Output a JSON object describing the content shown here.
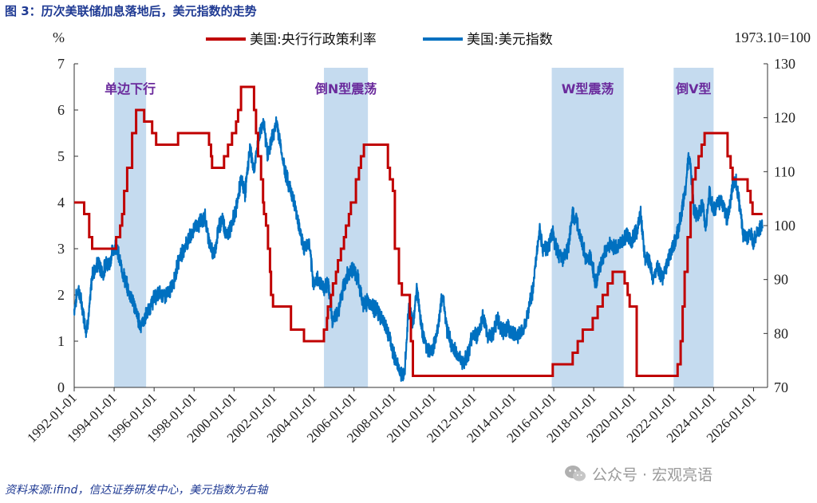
{
  "title": "图 3：历次美联储加息落地后，美元指数的走势",
  "source": "资料来源:ifind，信达证券研发中心，美元指数为右轴",
  "watermark": "公众号 · 宏观亮语",
  "colors": {
    "policy_rate": "#c00000",
    "dollar_index": "#0070c0",
    "shade": "#c5dbef",
    "label": "#6a2a9c"
  },
  "chart_data": {
    "type": "line",
    "left_axis": {
      "label": "%",
      "ylim": [
        0,
        7
      ],
      "ticks": [
        0,
        1,
        2,
        3,
        4,
        5,
        6,
        7
      ]
    },
    "right_axis": {
      "label": "1973.10=100",
      "ylim": [
        70,
        130
      ],
      "ticks": [
        70,
        80,
        90,
        100,
        110,
        120,
        130
      ]
    },
    "x_range": [
      1992.0,
      2026.7
    ],
    "x_ticks": [
      "1992-01-01",
      "1994-01-01",
      "1996-01-01",
      "1998-01-01",
      "2000-01-01",
      "2002-01-01",
      "2004-01-01",
      "2006-01-01",
      "2008-01-01",
      "2010-01-01",
      "2012-01-01",
      "2014-01-01",
      "2016-01-01",
      "2018-01-01",
      "2020-01-01",
      "2022-01-01",
      "2024-01-01",
      "2026-01-01"
    ],
    "shaded_periods": [
      {
        "label": "单边下行",
        "start": 1994.0,
        "end": 1995.6
      },
      {
        "label": "倒N型震荡",
        "start": 2004.5,
        "end": 2006.7
      },
      {
        "label": "W型震荡",
        "start": 2015.9,
        "end": 2019.5
      },
      {
        "label": "倒V型",
        "start": 2022.0,
        "end": 2024.0
      }
    ],
    "series": [
      {
        "name": "美国:央行行政策利率",
        "display_name": "美国:央行行政策利率",
        "axis": "left",
        "step": true,
        "points": [
          [
            1992.0,
            4.0
          ],
          [
            1992.5,
            3.75
          ],
          [
            1992.75,
            3.25
          ],
          [
            1992.9,
            3.0
          ],
          [
            1994.1,
            3.25
          ],
          [
            1994.3,
            3.5
          ],
          [
            1994.4,
            3.75
          ],
          [
            1994.5,
            4.25
          ],
          [
            1994.65,
            4.75
          ],
          [
            1994.9,
            5.5
          ],
          [
            1995.1,
            6.0
          ],
          [
            1995.5,
            5.75
          ],
          [
            1995.9,
            5.5
          ],
          [
            1996.1,
            5.25
          ],
          [
            1997.2,
            5.5
          ],
          [
            1998.75,
            5.25
          ],
          [
            1998.85,
            5.0
          ],
          [
            1998.9,
            4.75
          ],
          [
            1999.5,
            5.0
          ],
          [
            1999.7,
            5.25
          ],
          [
            1999.9,
            5.5
          ],
          [
            2000.1,
            5.75
          ],
          [
            2000.2,
            6.0
          ],
          [
            2000.35,
            6.5
          ],
          [
            2001.0,
            6.0
          ],
          [
            2001.1,
            5.5
          ],
          [
            2001.2,
            5.0
          ],
          [
            2001.35,
            4.5
          ],
          [
            2001.45,
            4.0
          ],
          [
            2001.5,
            3.75
          ],
          [
            2001.6,
            3.5
          ],
          [
            2001.7,
            3.0
          ],
          [
            2001.8,
            2.5
          ],
          [
            2001.85,
            2.0
          ],
          [
            2001.95,
            1.75
          ],
          [
            2002.85,
            1.25
          ],
          [
            2003.5,
            1.0
          ],
          [
            2004.5,
            1.25
          ],
          [
            2004.65,
            1.5
          ],
          [
            2004.7,
            1.75
          ],
          [
            2004.85,
            2.0
          ],
          [
            2004.95,
            2.25
          ],
          [
            2005.1,
            2.5
          ],
          [
            2005.2,
            2.75
          ],
          [
            2005.35,
            3.0
          ],
          [
            2005.5,
            3.25
          ],
          [
            2005.6,
            3.5
          ],
          [
            2005.75,
            3.75
          ],
          [
            2005.85,
            4.0
          ],
          [
            2006.1,
            4.5
          ],
          [
            2006.25,
            4.75
          ],
          [
            2006.35,
            5.0
          ],
          [
            2006.5,
            5.25
          ],
          [
            2007.7,
            4.75
          ],
          [
            2007.8,
            4.5
          ],
          [
            2007.95,
            4.25
          ],
          [
            2008.05,
            3.0
          ],
          [
            2008.25,
            2.25
          ],
          [
            2008.4,
            2.0
          ],
          [
            2008.8,
            1.5
          ],
          [
            2008.85,
            1.0
          ],
          [
            2008.95,
            0.25
          ],
          [
            2015.95,
            0.5
          ],
          [
            2016.95,
            0.75
          ],
          [
            2017.2,
            1.0
          ],
          [
            2017.45,
            1.25
          ],
          [
            2017.95,
            1.5
          ],
          [
            2018.2,
            1.75
          ],
          [
            2018.45,
            2.0
          ],
          [
            2018.7,
            2.25
          ],
          [
            2018.95,
            2.5
          ],
          [
            2019.55,
            2.25
          ],
          [
            2019.7,
            2.0
          ],
          [
            2019.8,
            1.75
          ],
          [
            2020.15,
            0.25
          ],
          [
            2022.2,
            0.5
          ],
          [
            2022.35,
            1.0
          ],
          [
            2022.45,
            1.75
          ],
          [
            2022.55,
            2.5
          ],
          [
            2022.7,
            3.25
          ],
          [
            2022.85,
            4.0
          ],
          [
            2022.95,
            4.5
          ],
          [
            2023.1,
            4.75
          ],
          [
            2023.25,
            5.0
          ],
          [
            2023.4,
            5.25
          ],
          [
            2023.55,
            5.5
          ],
          [
            2024.7,
            5.0
          ],
          [
            2024.85,
            4.75
          ],
          [
            2024.95,
            4.5
          ],
          [
            2025.7,
            4.25
          ],
          [
            2025.85,
            4.0
          ],
          [
            2025.95,
            3.75
          ],
          [
            2026.45,
            3.75
          ]
        ]
      },
      {
        "name": "美国:美元指数",
        "axis": "right",
        "step": false,
        "points": [
          [
            1992.0,
            84.5
          ],
          [
            1992.2,
            88.5
          ],
          [
            1992.45,
            84.0
          ],
          [
            1992.6,
            80.5
          ],
          [
            1992.75,
            84.0
          ],
          [
            1992.9,
            91.0
          ],
          [
            1993.2,
            93.0
          ],
          [
            1993.45,
            91.0
          ],
          [
            1993.6,
            93.5
          ],
          [
            1993.75,
            92.5
          ],
          [
            1993.9,
            95.0
          ],
          [
            1994.1,
            96.5
          ],
          [
            1994.3,
            93.0
          ],
          [
            1994.5,
            90.5
          ],
          [
            1994.7,
            88.0
          ],
          [
            1994.9,
            86.5
          ],
          [
            1995.1,
            84.0
          ],
          [
            1995.3,
            81.5
          ],
          [
            1995.5,
            82.5
          ],
          [
            1995.75,
            84.5
          ],
          [
            1996.0,
            86.5
          ],
          [
            1996.25,
            87.5
          ],
          [
            1996.5,
            87.0
          ],
          [
            1996.75,
            87.5
          ],
          [
            1997.0,
            90.0
          ],
          [
            1997.3,
            94.5
          ],
          [
            1997.6,
            96.5
          ],
          [
            1997.85,
            98.0
          ],
          [
            1998.05,
            100.0
          ],
          [
            1998.3,
            100.5
          ],
          [
            1998.55,
            101.5
          ],
          [
            1998.8,
            96.0
          ],
          [
            1999.0,
            94.5
          ],
          [
            1999.2,
            99.0
          ],
          [
            1999.4,
            101.5
          ],
          [
            1999.65,
            98.0
          ],
          [
            1999.9,
            100.5
          ],
          [
            2000.1,
            103.0
          ],
          [
            2000.35,
            108.5
          ],
          [
            2000.55,
            106.0
          ],
          [
            2000.8,
            114.5
          ],
          [
            2001.0,
            110.0
          ],
          [
            2001.2,
            115.5
          ],
          [
            2001.45,
            119.5
          ],
          [
            2001.7,
            113.0
          ],
          [
            2001.95,
            117.0
          ],
          [
            2002.15,
            119.0
          ],
          [
            2002.45,
            112.0
          ],
          [
            2002.7,
            108.0
          ],
          [
            2002.9,
            106.0
          ],
          [
            2003.2,
            101.0
          ],
          [
            2003.5,
            95.5
          ],
          [
            2003.75,
            97.0
          ],
          [
            2003.95,
            89.5
          ],
          [
            2004.25,
            90.0
          ],
          [
            2004.5,
            88.5
          ],
          [
            2004.7,
            89.5
          ],
          [
            2004.95,
            82.0
          ],
          [
            2005.2,
            84.0
          ],
          [
            2005.5,
            89.0
          ],
          [
            2005.75,
            91.5
          ],
          [
            2005.95,
            92.0
          ],
          [
            2006.2,
            90.0
          ],
          [
            2006.45,
            85.5
          ],
          [
            2006.7,
            86.0
          ],
          [
            2006.95,
            85.0
          ],
          [
            2007.2,
            84.0
          ],
          [
            2007.5,
            82.0
          ],
          [
            2007.75,
            79.5
          ],
          [
            2007.95,
            76.5
          ],
          [
            2008.2,
            74.0
          ],
          [
            2008.4,
            72.0
          ],
          [
            2008.55,
            74.0
          ],
          [
            2008.75,
            85.5
          ],
          [
            2008.95,
            81.5
          ],
          [
            2009.15,
            88.5
          ],
          [
            2009.4,
            80.5
          ],
          [
            2009.7,
            77.0
          ],
          [
            2009.9,
            76.5
          ],
          [
            2010.15,
            80.0
          ],
          [
            2010.45,
            87.5
          ],
          [
            2010.65,
            81.0
          ],
          [
            2010.9,
            77.5
          ],
          [
            2011.2,
            76.0
          ],
          [
            2011.45,
            74.5
          ],
          [
            2011.7,
            76.0
          ],
          [
            2011.95,
            80.0
          ],
          [
            2012.2,
            79.5
          ],
          [
            2012.45,
            83.0
          ],
          [
            2012.7,
            79.5
          ],
          [
            2012.95,
            80.0
          ],
          [
            2013.2,
            82.5
          ],
          [
            2013.45,
            80.5
          ],
          [
            2013.7,
            81.0
          ],
          [
            2013.95,
            80.0
          ],
          [
            2014.2,
            79.5
          ],
          [
            2014.45,
            80.5
          ],
          [
            2014.7,
            84.0
          ],
          [
            2014.95,
            88.0
          ],
          [
            2015.15,
            95.0
          ],
          [
            2015.3,
            99.5
          ],
          [
            2015.45,
            95.5
          ],
          [
            2015.7,
            96.0
          ],
          [
            2015.95,
            98.5
          ],
          [
            2016.2,
            95.0
          ],
          [
            2016.45,
            94.0
          ],
          [
            2016.7,
            95.5
          ],
          [
            2016.95,
            102.0
          ],
          [
            2017.15,
            100.5
          ],
          [
            2017.4,
            97.5
          ],
          [
            2017.6,
            93.5
          ],
          [
            2017.85,
            94.0
          ],
          [
            2018.1,
            89.5
          ],
          [
            2018.35,
            92.5
          ],
          [
            2018.6,
            95.5
          ],
          [
            2018.85,
            96.5
          ],
          [
            2019.1,
            96.0
          ],
          [
            2019.4,
            97.0
          ],
          [
            2019.65,
            98.5
          ],
          [
            2019.9,
            97.0
          ],
          [
            2020.2,
            99.5
          ],
          [
            2020.35,
            102.5
          ],
          [
            2020.55,
            94.0
          ],
          [
            2020.8,
            93.5
          ],
          [
            2020.95,
            89.5
          ],
          [
            2021.2,
            92.5
          ],
          [
            2021.45,
            90.0
          ],
          [
            2021.7,
            93.5
          ],
          [
            2021.95,
            96.0
          ],
          [
            2022.2,
            98.5
          ],
          [
            2022.45,
            103.5
          ],
          [
            2022.6,
            107.0
          ],
          [
            2022.75,
            113.0
          ],
          [
            2022.85,
            110.5
          ],
          [
            2023.0,
            103.0
          ],
          [
            2023.2,
            102.0
          ],
          [
            2023.45,
            103.5
          ],
          [
            2023.6,
            100.0
          ],
          [
            2023.8,
            106.0
          ],
          [
            2024.0,
            102.5
          ],
          [
            2024.25,
            104.5
          ],
          [
            2024.5,
            104.0
          ],
          [
            2024.7,
            101.0
          ],
          [
            2024.95,
            107.5
          ],
          [
            2025.1,
            108.5
          ],
          [
            2025.3,
            104.0
          ],
          [
            2025.45,
            99.0
          ],
          [
            2025.6,
            97.5
          ],
          [
            2025.8,
            98.5
          ],
          [
            2026.0,
            97.0
          ],
          [
            2026.2,
            99.0
          ],
          [
            2026.45,
            99.5
          ]
        ]
      }
    ],
    "legend": {
      "placement": "top-center"
    }
  }
}
